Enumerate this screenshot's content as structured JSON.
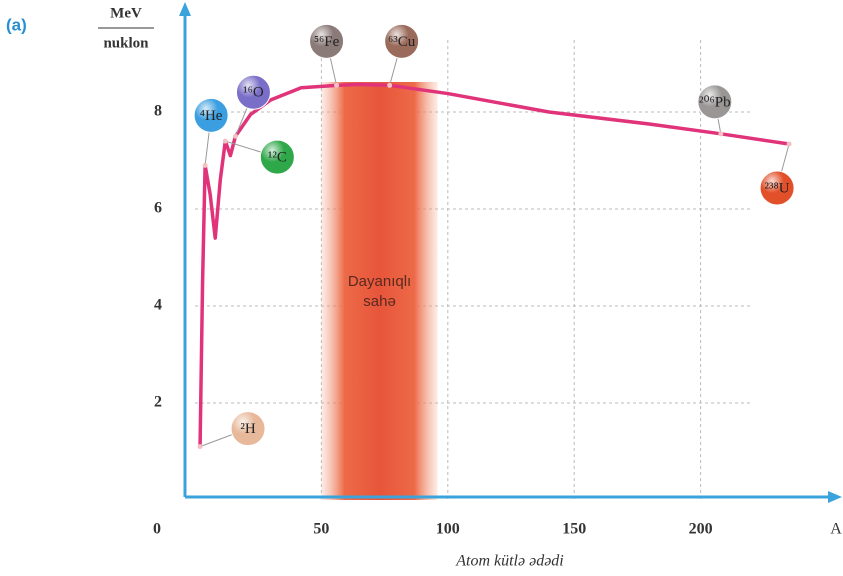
{
  "panel_label": "(a)",
  "chart_data": {
    "type": "line",
    "y_label_top": "MeV",
    "y_label_bottom": "nuklon",
    "x_label": "Atom kütlə ədədi",
    "x_axis_end_label": "A",
    "xlim": [
      0,
      250
    ],
    "ylim": [
      0,
      9
    ],
    "xticks": [
      0,
      50,
      100,
      150,
      200
    ],
    "yticks": [
      2,
      4,
      6,
      8
    ],
    "grid": true,
    "series": [
      {
        "color": "#e0337a",
        "x": [
          2,
          3,
          4,
          6,
          8,
          10,
          12,
          14,
          16,
          18,
          22,
          30,
          42,
          56,
          65,
          77,
          100,
          140,
          180,
          208,
          235
        ],
        "values": [
          1.1,
          4.5,
          6.9,
          6.3,
          5.4,
          6.6,
          7.4,
          7.1,
          7.5,
          7.65,
          7.95,
          8.25,
          8.5,
          8.55,
          8.57,
          8.55,
          8.38,
          8.0,
          7.75,
          7.55,
          7.34
        ]
      }
    ],
    "stable_region": {
      "label": [
        "Dayanıqlı",
        "sahə"
      ],
      "x": [
        50,
        96
      ]
    },
    "annotations": [
      {
        "text": "²H",
        "x": 2,
        "y": 1.1,
        "color": "#e8b89a"
      },
      {
        "text": "⁴He",
        "x": 4,
        "y": 6.9,
        "color": "#3a9ee0"
      },
      {
        "text": "¹²C",
        "x": 12,
        "y": 7.4,
        "color": "#2fa84a"
      },
      {
        "text": "¹⁶O",
        "x": 16,
        "y": 7.5,
        "color": "#7a6fc8"
      },
      {
        "text": "⁵⁶Fe",
        "x": 56,
        "y": 8.55,
        "color": "#8a7a78"
      },
      {
        "text": "⁶³Cu",
        "x": 77,
        "y": 8.55,
        "color": "#9a6a5a"
      },
      {
        "text": "²⁰⁶Pb",
        "x": 208,
        "y": 7.55,
        "color": "#9a9696"
      },
      {
        "text": "²³⁸U",
        "x": 235,
        "y": 7.34,
        "color": "#e2502a"
      }
    ]
  }
}
